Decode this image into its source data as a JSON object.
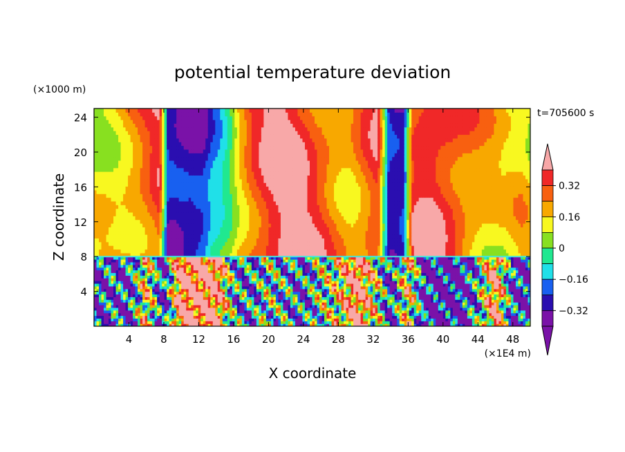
{
  "chart_data": {
    "type": "heatmap",
    "title": "potential temperature deviation",
    "xlabel": "X coordinate",
    "ylabel": "Z coordinate",
    "x_unit": "(×1E4 m)",
    "y_unit": "(×1000 m)",
    "time_label": "t=705600 s",
    "xlim": [
      0,
      50
    ],
    "ylim": [
      0,
      25
    ],
    "x_ticks": [
      4,
      8,
      12,
      16,
      20,
      24,
      28,
      32,
      36,
      40,
      44,
      48
    ],
    "y_ticks": [
      4,
      8,
      12,
      16,
      20,
      24
    ],
    "colorbar": {
      "levels": [
        -0.4,
        -0.32,
        -0.24,
        -0.16,
        -0.08,
        0,
        0.08,
        0.16,
        0.24,
        0.32,
        0.4
      ],
      "tick_labels": [
        "0.32",
        "0.16",
        "0",
        "−0.16",
        "−0.32"
      ],
      "tick_values": [
        0.32,
        0.16,
        0,
        -0.16,
        -0.32
      ],
      "colors": [
        "#7a12a8",
        "#2a0eb0",
        "#1860f0",
        "#20e0e8",
        "#20e890",
        "#88e020",
        "#f8f820",
        "#f8a800",
        "#f86010",
        "#f02828",
        "#f8a8a8"
      ]
    },
    "upper_layer_profile": {
      "x": [
        0,
        2,
        4,
        6,
        7.5,
        8.5,
        9.5,
        11,
        12.5,
        13.5,
        14.5,
        15.5,
        16.5,
        18,
        20,
        22,
        24,
        26,
        28,
        29.5,
        31,
        32.5,
        33.8,
        34.5,
        35.5,
        36.5,
        37.5,
        39,
        41,
        43,
        45,
        47,
        49,
        50
      ],
      "values": [
        0.02,
        0.08,
        0.14,
        0.2,
        0.26,
        -0.4,
        -0.42,
        -0.42,
        -0.36,
        -0.22,
        -0.14,
        -0.04,
        0.1,
        0.22,
        0.3,
        0.34,
        0.3,
        0.24,
        0.16,
        0.14,
        0.2,
        0.26,
        -0.4,
        -0.42,
        -0.4,
        0.22,
        0.3,
        0.34,
        0.28,
        0.18,
        0.08,
        0.02,
        0.06,
        0.04
      ]
    },
    "lower_layer_profile": {
      "x": [
        0,
        2,
        4,
        6,
        8,
        10,
        12,
        14,
        16,
        18,
        20,
        22,
        24,
        26,
        28,
        30,
        32,
        34,
        36,
        38,
        40,
        42,
        44,
        46,
        48,
        50
      ],
      "values": [
        -0.36,
        -0.3,
        -0.36,
        0.1,
        -0.4,
        0.38,
        0.36,
        0.34,
        -0.2,
        -0.28,
        -0.12,
        -0.22,
        -0.3,
        -0.1,
        0.02,
        0.36,
        0.06,
        -0.36,
        0.1,
        -0.42,
        -0.44,
        -0.44,
        -0.2,
        0.3,
        -0.36,
        -0.4
      ]
    }
  }
}
